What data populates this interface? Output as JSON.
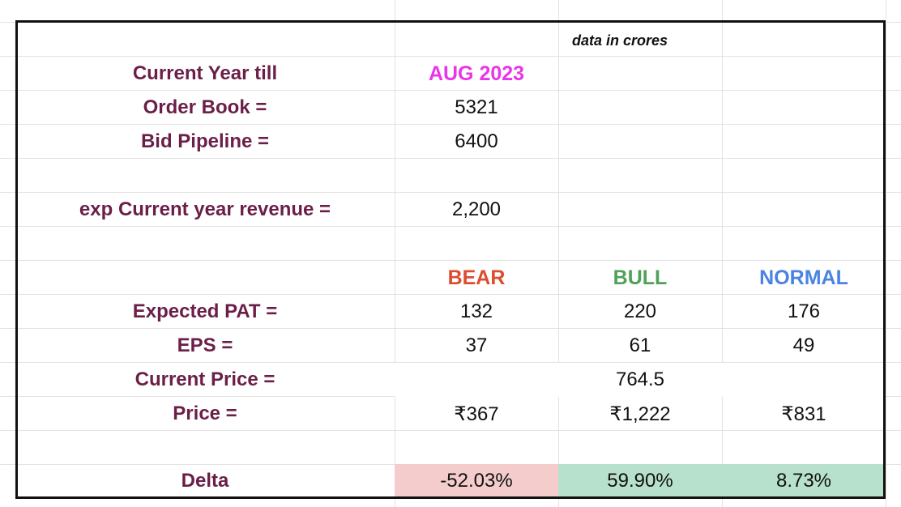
{
  "note": "data in crores",
  "current_year": {
    "label": "Current Year till",
    "value": "AUG 2023"
  },
  "order_book": {
    "label": "Order Book =",
    "value": "5321"
  },
  "bid_pipeline": {
    "label": "Bid Pipeline =",
    "value": "6400"
  },
  "exp_revenue": {
    "label": "exp Current year revenue =",
    "value": "2,200"
  },
  "scenarios": {
    "bear": "BEAR",
    "bull": "BULL",
    "normal": "NORMAL"
  },
  "expected_pat": {
    "label": "Expected PAT =",
    "bear": "132",
    "bull": "220",
    "normal": "176"
  },
  "eps": {
    "label": "EPS =",
    "bear": "37",
    "bull": "61",
    "normal": "49"
  },
  "current_price": {
    "label": "Current Price =",
    "value": "764.5"
  },
  "price": {
    "label": "Price =",
    "bear": "₹367",
    "bull": "₹1,222",
    "normal": "₹831"
  },
  "delta": {
    "label": "Delta",
    "bear": "-52.03%",
    "bull": "59.90%",
    "normal": "8.73%"
  },
  "colors": {
    "label": "#6b1f48",
    "accent_magenta": "#ea34ea",
    "bear": "#dd4c2f",
    "bull": "#4ea25a",
    "normal": "#4b83e4",
    "delta_negative_fill": "#f4cccc",
    "delta_positive_fill": "#b7e1cd"
  }
}
